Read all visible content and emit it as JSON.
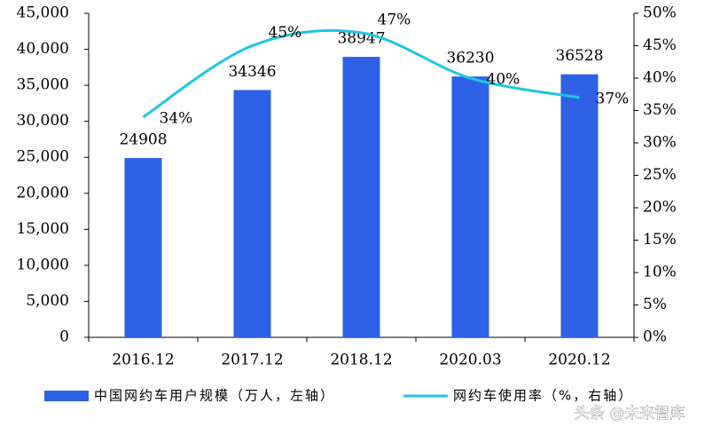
{
  "chart_data": {
    "type": "bar-line",
    "categories": [
      "2016.12",
      "2017.12",
      "2018.12",
      "2020.03",
      "2020.12"
    ],
    "series": [
      {
        "name": "中国网约车用户规模（万人，左轴）",
        "color": "#2e62e6",
        "type": "bar",
        "values": [
          24908,
          34346,
          38947,
          36230,
          36528
        ]
      },
      {
        "name": "网约车使用率（%，右轴）",
        "color": "#1ec6e3",
        "type": "line",
        "axis": "y2",
        "values": [
          34,
          45,
          47,
          40,
          37
        ],
        "value_labels": [
          "34%",
          "45%",
          "47%",
          "40%",
          "37%"
        ]
      }
    ],
    "ylim": [
      0,
      45000
    ],
    "yticks": [
      0,
      {
        "value": 5000,
        "label": "5,000"
      },
      {
        "value": 10000,
        "label": "10,000"
      },
      {
        "value": 15000,
        "label": "15,000"
      },
      {
        "value": 20000,
        "label": "20,000"
      },
      {
        "value": 25000,
        "label": "25,000"
      },
      {
        "value": 30000,
        "label": "30,000"
      },
      {
        "value": 35000,
        "label": "35,000"
      },
      {
        "value": 40000,
        "label": "40,000"
      },
      {
        "value": 45000,
        "label": "45,000"
      }
    ],
    "y2lim": [
      0,
      50
    ],
    "y2ticks": [
      {
        "value": 0,
        "label": "0%"
      },
      {
        "value": 5,
        "label": "5%"
      },
      {
        "value": 10,
        "label": "10%"
      },
      {
        "value": 15,
        "label": "15%"
      },
      {
        "value": 20,
        "label": "20%"
      },
      {
        "value": 25,
        "label": "25%"
      },
      {
        "value": 30,
        "label": "30%"
      },
      {
        "value": 35,
        "label": "35%"
      },
      {
        "value": 40,
        "label": "40%"
      },
      {
        "value": 45,
        "label": "45%"
      },
      {
        "value": 50,
        "label": "50%"
      }
    ],
    "grid": false,
    "legend": "bottom",
    "watermark": "头条 @未来智库"
  }
}
